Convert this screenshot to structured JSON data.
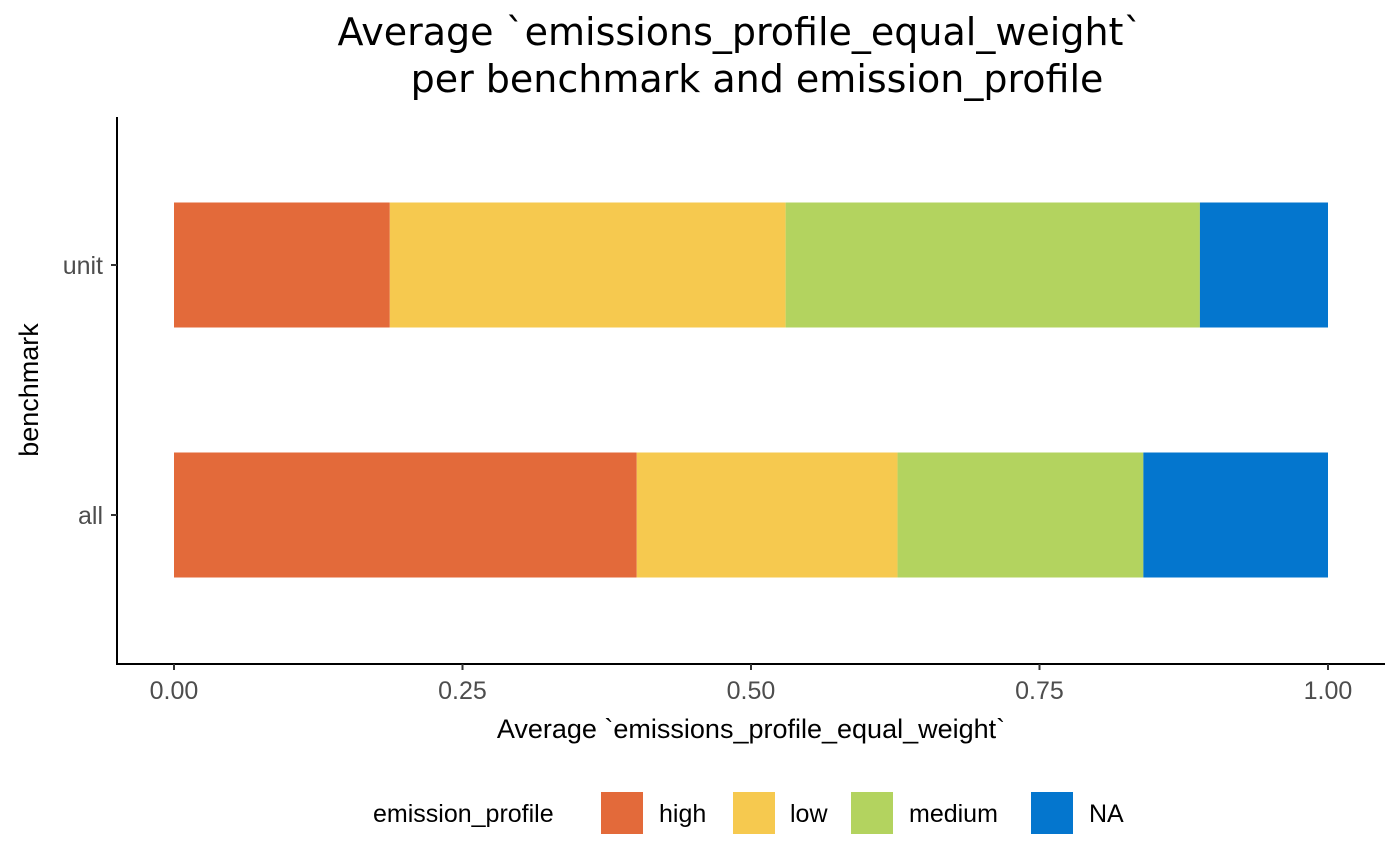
{
  "chart_data": {
    "type": "bar",
    "orientation": "horizontal",
    "stacked": true,
    "title": [
      "Average `emissions_profile_equal_weight`",
      "per benchmark and emission_profile"
    ],
    "xlabel": "Average `emissions_profile_equal_weight`",
    "ylabel": "benchmark",
    "xlim": [
      0,
      1
    ],
    "xticks": [
      "0.00",
      "0.25",
      "0.50",
      "0.75",
      "1.00"
    ],
    "categories": [
      "unit",
      "all"
    ],
    "series": [
      {
        "name": "high",
        "color": "#E36A3A",
        "values": [
          0.187,
          0.401
        ]
      },
      {
        "name": "low",
        "color": "#F6C94F",
        "values": [
          0.343,
          0.226
        ]
      },
      {
        "name": "medium",
        "color": "#B3D35F",
        "values": [
          0.359,
          0.213
        ]
      },
      {
        "name": "NA",
        "color": "#0476CE",
        "values": [
          0.111,
          0.16
        ]
      }
    ],
    "legend": {
      "title": "emission_profile",
      "position": "bottom"
    },
    "grid": false
  }
}
